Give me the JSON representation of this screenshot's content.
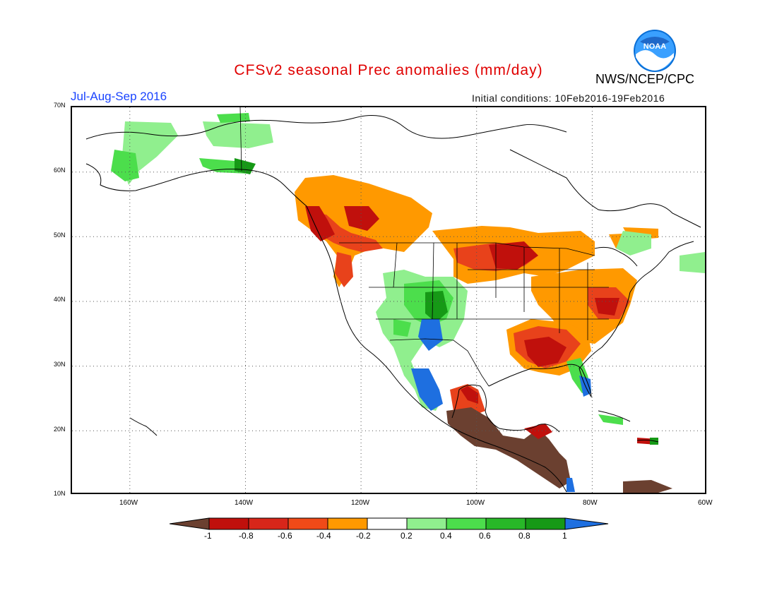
{
  "header": {
    "title": "CFSv2 seasonal Prec anomalies (mm/day)",
    "season": "Jul-Aug-Sep 2016",
    "initial_conditions": "Initial conditions: 10Feb2016-19Feb2016",
    "agency": "NWS/NCEP/CPC",
    "logo_text": "NOAA"
  },
  "colors": {
    "title": "#e00000",
    "season": "#1a44ff",
    "noaa_blue": "#0a6fd6",
    "brown": "#6b4030",
    "dark_red": "#c0100c",
    "red": "#e8421b",
    "orange_red": "#f26b12",
    "orange": "#ff9900",
    "light_green": "#90ef8e",
    "green": "#4cde4c",
    "mid_green": "#28b828",
    "dark_green": "#169916",
    "blue": "#1e6fe0"
  },
  "map": {
    "lat_labels": [
      "70N",
      "60N",
      "50N",
      "40N",
      "30N",
      "20N",
      "10N"
    ],
    "lon_labels": [
      "160W",
      "140W",
      "120W",
      "100W",
      "80W",
      "60W"
    ]
  },
  "colorbar": {
    "labels": [
      "-1",
      "-0.8",
      "-0.6",
      "-0.4",
      "-0.2",
      "0.2",
      "0.4",
      "0.6",
      "0.8",
      "1"
    ],
    "bins": [
      {
        "range": "< -1",
        "color": "#6b4030"
      },
      {
        "range": "-1 to -0.8",
        "color": "#c0100c"
      },
      {
        "range": "-0.8 to -0.6",
        "color": "#d8261a"
      },
      {
        "range": "-0.6 to -0.4",
        "color": "#f04a18"
      },
      {
        "range": "-0.4 to -0.2",
        "color": "#ff9900"
      },
      {
        "range": "-0.2 to 0.2",
        "color": "#ffffff"
      },
      {
        "range": "0.2 to 0.4",
        "color": "#90ef8e"
      },
      {
        "range": "0.4 to 0.6",
        "color": "#4cde4c"
      },
      {
        "range": "0.6 to 0.8",
        "color": "#28b828"
      },
      {
        "range": "0.8 to 1",
        "color": "#169916"
      },
      {
        "range": "> 1",
        "color": "#1e6fe0"
      }
    ]
  }
}
